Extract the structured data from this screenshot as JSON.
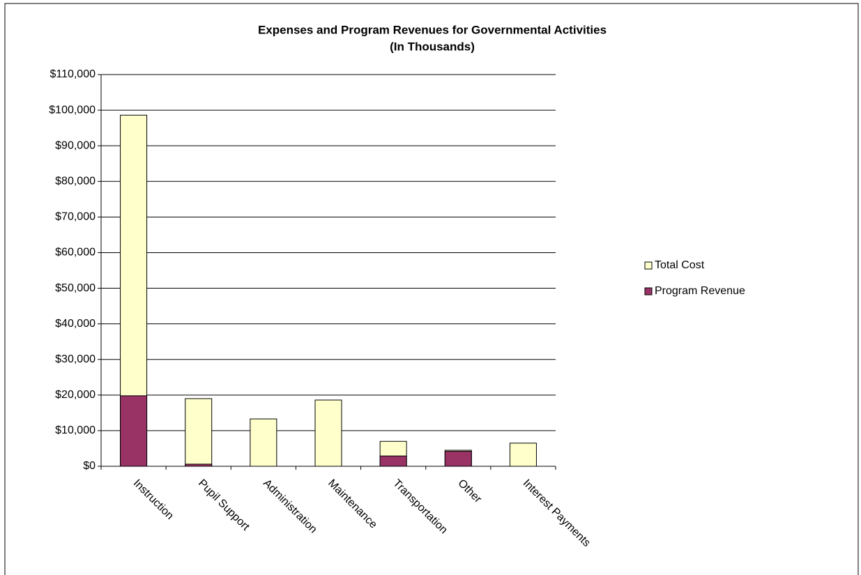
{
  "chart_data": {
    "type": "bar",
    "title": "Expenses and Program Revenues for Governmental Activities",
    "subtitle": "(In Thousands)",
    "categories": [
      "Instruction",
      "Pupil Support",
      "Administration",
      "Maintenance",
      "Transportation",
      "Other",
      "Interest Payments"
    ],
    "series": [
      {
        "name": "Total Cost",
        "color": "#ffffcc",
        "values": [
          98600,
          19000,
          13300,
          18600,
          7000,
          4500,
          6500
        ]
      },
      {
        "name": "Program Revenue",
        "color": "#993366",
        "values": [
          19800,
          600,
          0,
          0,
          2900,
          4200,
          0
        ]
      }
    ],
    "ylim": [
      0,
      110000
    ],
    "yticks": [
      {
        "value": 0,
        "label": "$0"
      },
      {
        "value": 10000,
        "label": "$10,000"
      },
      {
        "value": 20000,
        "label": "$20,000"
      },
      {
        "value": 30000,
        "label": "$30,000"
      },
      {
        "value": 40000,
        "label": "$40,000"
      },
      {
        "value": 50000,
        "label": "$50,000"
      },
      {
        "value": 60000,
        "label": "$60,000"
      },
      {
        "value": 70000,
        "label": "$70,000"
      },
      {
        "value": 80000,
        "label": "$80,000"
      },
      {
        "value": 90000,
        "label": "$90,000"
      },
      {
        "value": 100000,
        "label": "$100,000"
      },
      {
        "value": 110000,
        "label": "$110,000"
      }
    ],
    "grid": true,
    "legend": "right"
  }
}
